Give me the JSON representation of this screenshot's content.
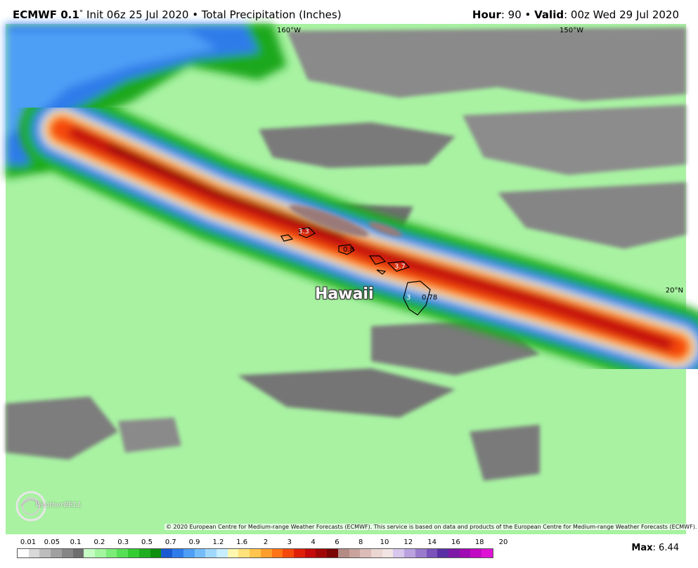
{
  "header": {
    "model_name": "ECMWF 0.1",
    "degree_mark": "°",
    "init_text": " Init 06z 25 Jul 2020 • Total Precipitation (Inches)",
    "hour_label": "Hour",
    "hour_value": ": 90 • ",
    "valid_label": "Valid",
    "valid_value": ": 00z Wed 29 Jul 2020"
  },
  "map": {
    "lon_labels": [
      "160°W",
      "150°W"
    ],
    "lat_labels": [
      "20°N"
    ],
    "region_label": "Hawaii",
    "point_labels": [
      "3.3",
      "0.8",
      "3.7",
      "3",
      "0.78"
    ],
    "copyright": "© 2020 European Centre for Medium-range Weather Forecasts (ECMWF). This service is based on data and products of the European Centre for Medium-range Weather Forecasts (ECMWF).",
    "logo_text": "WeatherBELL"
  },
  "colorbar": {
    "labels": [
      "0.01",
      "0.05",
      "0.1",
      "0.2",
      "0.3",
      "0.5",
      "0.7",
      "0.9",
      "1.2",
      "1.6",
      "2",
      "3",
      "4",
      "6",
      "8",
      "10",
      "12",
      "14",
      "16",
      "18",
      "20"
    ],
    "colors": [
      "#ffffff",
      "#d9d9d9",
      "#bdbdbd",
      "#a0a0a0",
      "#868686",
      "#6e6e6e",
      "#c6fdc4",
      "#a3f5a0",
      "#7cec78",
      "#57e055",
      "#33cc33",
      "#1fae1f",
      "#0f8f0f",
      "#1a5ad1",
      "#2e7bea",
      "#4e9ff5",
      "#74bdfa",
      "#9fd8fc",
      "#c7eefe",
      "#fff7b0",
      "#ffe27a",
      "#ffc54d",
      "#ff9e2b",
      "#ff7417",
      "#f5480d",
      "#e01f0a",
      "#c40a0a",
      "#a00808",
      "#7a0606",
      "#b48a84",
      "#c9a29d",
      "#dcbcb7",
      "#ebd6d2",
      "#f2e4e2",
      "#d7c7ec",
      "#b9a2dd",
      "#9a7acc",
      "#7a52ba",
      "#5a2fa5",
      "#7d1aa8",
      "#a00ab3",
      "#c20ac4",
      "#e012d6"
    ]
  },
  "max": {
    "label": "Max",
    "value": ": 6.44"
  }
}
